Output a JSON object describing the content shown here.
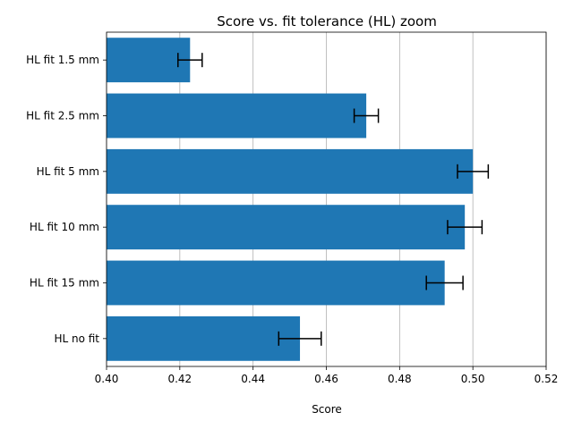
{
  "chart_data": {
    "type": "bar",
    "orientation": "horizontal",
    "title": "Score vs. fit tolerance (HL) zoom",
    "xlabel": "Score",
    "ylabel": "",
    "xlim": [
      0.4,
      0.52
    ],
    "xticks": [
      0.4,
      0.42,
      0.44,
      0.46,
      0.48,
      0.5,
      0.52
    ],
    "xtick_labels": [
      "0.40",
      "0.42",
      "0.44",
      "0.46",
      "0.48",
      "0.50",
      "0.52"
    ],
    "grid": "x",
    "bar_color": "#1f77b4",
    "errorbar_color": "#000000",
    "categories": [
      "HL fit 1.5 mm",
      "HL fit 2.5 mm",
      "HL fit 5 mm",
      "HL fit 10 mm",
      "HL fit 15 mm",
      "HL no fit"
    ],
    "values": [
      0.4228,
      0.4709,
      0.5,
      0.4978,
      0.4923,
      0.4528
    ],
    "errors": [
      0.0033,
      0.0033,
      0.0042,
      0.0047,
      0.005,
      0.0058
    ]
  }
}
